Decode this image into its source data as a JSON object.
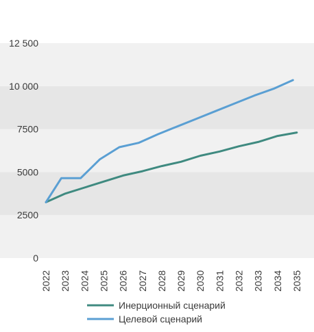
{
  "chart_data": {
    "type": "line",
    "title": "",
    "xlabel": "",
    "ylabel": "",
    "ylim": [
      0,
      12500
    ],
    "yticks": [
      0,
      2500,
      5000,
      7500,
      10000,
      12500
    ],
    "ytick_labels": [
      "0",
      "2500",
      "5000",
      "7500",
      "10 000",
      "12 500"
    ],
    "x": [
      "2022",
      "2023",
      "2024",
      "2025",
      "2026",
      "2027",
      "2028",
      "2029",
      "2030",
      "2031",
      "2032",
      "2033",
      "2034",
      "2035"
    ],
    "grid": "alternating horizontal bands",
    "legend_position": "bottom",
    "series": [
      {
        "name": "Инерционный сценарий",
        "color": "#3f8a80",
        "values": [
          3250,
          3750,
          4100,
          4450,
          4800,
          5050,
          5350,
          5600,
          5950,
          6200,
          6500,
          6750,
          7100,
          7300
        ]
      },
      {
        "name": "Целевой сценарий",
        "color": "#5a9fd3",
        "points": [
          {
            "x": "2022",
            "y": 3250
          },
          {
            "x": "2022.8",
            "y": 4650
          },
          {
            "x": "2023.8",
            "y": 4650
          },
          {
            "x": "2024.8",
            "y": 5750
          },
          {
            "x": "2025.8",
            "y": 6450
          },
          {
            "x": "2026.8",
            "y": 6700
          },
          {
            "x": "2027.8",
            "y": 7200
          },
          {
            "x": "2028.8",
            "y": 7650
          },
          {
            "x": "2029.8",
            "y": 8100
          },
          {
            "x": "2030.8",
            "y": 8550
          },
          {
            "x": "2031.8",
            "y": 9000
          },
          {
            "x": "2032.8",
            "y": 9450
          },
          {
            "x": "2033.8",
            "y": 9850
          },
          {
            "x": "2034.8",
            "y": 10350
          }
        ]
      }
    ]
  }
}
